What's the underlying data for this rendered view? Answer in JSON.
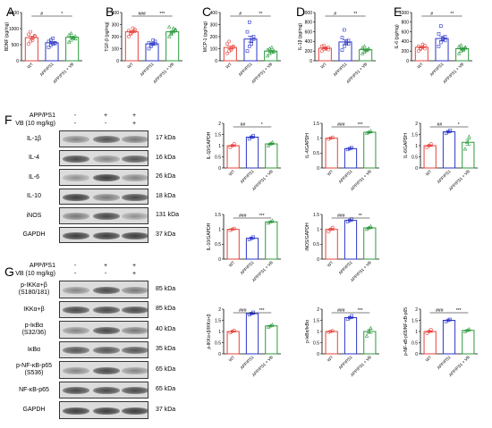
{
  "panels": {
    "A": "A",
    "B": "B",
    "C": "C",
    "D": "D",
    "E": "E",
    "F": "F",
    "G": "G"
  },
  "colors": {
    "wt": "#e8433c",
    "app": "#2b36c8",
    "vb": "#2c9a3d"
  },
  "blot_F": {
    "header_rows": [
      {
        "label": "APP/PS1",
        "marks": [
          "-",
          "+",
          "+"
        ]
      },
      {
        "label": "VB (10 mg/kg)",
        "marks": [
          "-",
          "-",
          "+"
        ]
      }
    ],
    "rows": [
      {
        "name": "IL-1β",
        "kda": "17 kDa",
        "intensity": [
          0.55,
          0.75,
          0.6
        ]
      },
      {
        "name": "IL-4",
        "kda": "16 kDa",
        "intensity": [
          0.8,
          0.55,
          0.75
        ]
      },
      {
        "name": "IL-6",
        "kda": "26 kDa",
        "intensity": [
          0.5,
          0.85,
          0.55
        ]
      },
      {
        "name": "IL-10",
        "kda": "18 kDa",
        "intensity": [
          0.85,
          0.6,
          0.8
        ]
      },
      {
        "name": "iNOS",
        "kda": "131 kDa",
        "intensity": [
          0.6,
          0.8,
          0.5
        ]
      },
      {
        "name": "GAPDH",
        "kda": "37 kDa",
        "intensity": [
          0.85,
          0.85,
          0.85
        ]
      }
    ]
  },
  "blot_G": {
    "header_rows": [
      {
        "label": "APP/PS1",
        "marks": [
          "-",
          "+",
          "+"
        ]
      },
      {
        "label": "VB (10 mg/kg)",
        "marks": [
          "-",
          "-",
          "+"
        ]
      }
    ],
    "rows": [
      {
        "name": "p-IKKα+β\n(S180/181)",
        "kda": "85 kDa",
        "intensity": [
          0.55,
          0.8,
          0.6
        ]
      },
      {
        "name": "IKKα+β",
        "kda": "85 kDa",
        "intensity": [
          0.8,
          0.8,
          0.8
        ]
      },
      {
        "name": "p-IκBα\n(S32/36)",
        "kda": "40 kDa",
        "intensity": [
          0.55,
          0.8,
          0.6
        ]
      },
      {
        "name": "IκBα",
        "kda": "35 kDa",
        "intensity": [
          0.75,
          0.75,
          0.75
        ]
      },
      {
        "name": "p-NF-κB-p65\n(S536)",
        "kda": "65 kDa",
        "intensity": [
          0.55,
          0.8,
          0.55
        ]
      },
      {
        "name": "NF-κB-p65",
        "kda": "65 kDa",
        "intensity": [
          0.8,
          0.8,
          0.8
        ]
      },
      {
        "name": "GAPDH",
        "kda": "37 kDa",
        "intensity": [
          0.85,
          0.85,
          0.85
        ]
      }
    ]
  },
  "chart_data": [
    {
      "id": "A",
      "type": "bar",
      "categories": [
        "WT",
        "APP/PS1",
        "APP/PS1 + VB"
      ],
      "values": [
        720,
        560,
        730
      ],
      "ylabel": "BDNF (pg/mg)",
      "ylim": [
        0,
        1500
      ],
      "ticks": [
        0,
        500,
        1000,
        1500
      ],
      "sig": [
        {
          "a": 0,
          "b": 1,
          "text": "#"
        },
        {
          "a": 1,
          "b": 2,
          "text": "*"
        }
      ],
      "points": [
        [
          520,
          600,
          700,
          760,
          820,
          900,
          640,
          780
        ],
        [
          420,
          480,
          520,
          560,
          600,
          650,
          700,
          540
        ],
        [
          580,
          640,
          700,
          760,
          800,
          850,
          720,
          680
        ]
      ]
    },
    {
      "id": "B",
      "type": "bar",
      "categories": [
        "WT",
        "APP/PS1",
        "APP/PS1 + VB"
      ],
      "values": [
        240,
        140,
        240
      ],
      "ylabel": "TGF-β (pg/mg)",
      "ylim": [
        0,
        400
      ],
      "ticks": [
        0,
        100,
        200,
        300,
        400
      ],
      "sig": [
        {
          "a": 0,
          "b": 1,
          "text": "###"
        },
        {
          "a": 1,
          "b": 2,
          "text": "***"
        }
      ],
      "points": [
        [
          200,
          220,
          240,
          260,
          250,
          230,
          270,
          245
        ],
        [
          100,
          120,
          140,
          160,
          150,
          130,
          170,
          140
        ],
        [
          200,
          220,
          240,
          260,
          280,
          230,
          270,
          250
        ]
      ]
    },
    {
      "id": "C",
      "type": "bar",
      "categories": [
        "WT",
        "APP/PS1",
        "APP/PS1 + VB"
      ],
      "values": [
        110,
        180,
        80
      ],
      "ylabel": "MCP-1 (pg/mg)",
      "ylim": [
        0,
        400
      ],
      "ticks": [
        0,
        100,
        200,
        300,
        400
      ],
      "sig": [
        {
          "a": 0,
          "b": 1,
          "text": "#"
        },
        {
          "a": 1,
          "b": 2,
          "text": "**"
        }
      ],
      "points": [
        [
          60,
          80,
          100,
          120,
          140,
          160,
          90,
          110
        ],
        [
          80,
          120,
          160,
          200,
          240,
          320,
          140,
          180
        ],
        [
          40,
          60,
          70,
          80,
          90,
          100,
          110,
          75
        ]
      ]
    },
    {
      "id": "D",
      "type": "bar",
      "categories": [
        "WT",
        "APP/PS1",
        "APP/PS1 + VB"
      ],
      "values": [
        260,
        390,
        230
      ],
      "ylabel": "IL-1β (pg/mg)",
      "ylim": [
        0,
        1000
      ],
      "ticks": [
        0,
        200,
        400,
        600,
        800,
        1000
      ],
      "sig": [
        {
          "a": 0,
          "b": 1,
          "text": "#"
        },
        {
          "a": 1,
          "b": 2,
          "text": "**"
        }
      ],
      "points": [
        [
          200,
          240,
          260,
          280,
          300,
          320,
          250,
          230
        ],
        [
          220,
          300,
          360,
          420,
          480,
          640,
          400,
          350
        ],
        [
          150,
          180,
          210,
          240,
          270,
          300,
          220,
          250
        ]
      ]
    },
    {
      "id": "E",
      "type": "bar",
      "categories": [
        "WT",
        "APP/PS1",
        "APP/PS1 + VB"
      ],
      "values": [
        280,
        460,
        250
      ],
      "ylabel": "IL-6 (pg/mg)",
      "ylim": [
        0,
        1000
      ],
      "ticks": [
        0,
        200,
        400,
        600,
        800,
        1000
      ],
      "sig": [
        {
          "a": 0,
          "b": 1,
          "text": "#"
        },
        {
          "a": 1,
          "b": 2,
          "text": "**"
        }
      ],
      "points": [
        [
          200,
          240,
          280,
          320,
          300,
          260,
          340,
          250
        ],
        [
          300,
          380,
          440,
          500,
          560,
          720,
          460,
          420
        ],
        [
          150,
          200,
          240,
          280,
          300,
          320,
          220,
          260
        ]
      ]
    },
    {
      "id": "F1",
      "type": "bar",
      "categories": [
        "WT",
        "APP/PS1",
        "APP/PS1 + VB"
      ],
      "values": [
        1.0,
        1.38,
        1.08
      ],
      "ylabel": "IL-1β/GAPDH",
      "ylim": [
        0,
        2.0
      ],
      "ticks": [
        0,
        0.5,
        1.0,
        1.5,
        2.0
      ],
      "sig": [
        {
          "a": 0,
          "b": 1,
          "text": "##"
        },
        {
          "a": 1,
          "b": 2,
          "text": "*"
        }
      ],
      "points": [
        [
          0.92,
          1.0,
          1.08
        ],
        [
          1.3,
          1.38,
          1.45
        ],
        [
          1.0,
          1.08,
          1.15
        ]
      ]
    },
    {
      "id": "F2",
      "type": "bar",
      "categories": [
        "WT",
        "APP/PS1",
        "APP/PS1 + VB"
      ],
      "values": [
        1.0,
        0.65,
        1.2
      ],
      "ylabel": "IL-4/GAPDH",
      "ylim": [
        0,
        1.5
      ],
      "ticks": [
        0,
        0.5,
        1.0,
        1.5
      ],
      "sig": [
        {
          "a": 0,
          "b": 1,
          "text": "###"
        },
        {
          "a": 1,
          "b": 2,
          "text": "***"
        }
      ],
      "points": [
        [
          0.97,
          1.0,
          1.03
        ],
        [
          0.62,
          0.65,
          0.68
        ],
        [
          1.16,
          1.2,
          1.24
        ]
      ]
    },
    {
      "id": "F3",
      "type": "bar",
      "categories": [
        "WT",
        "APP/PS1",
        "APP/PS1 + VB"
      ],
      "values": [
        1.0,
        1.62,
        1.15
      ],
      "ylabel": "IL-6/GAPDH",
      "ylim": [
        0,
        2.0
      ],
      "ticks": [
        0,
        0.5,
        1.0,
        1.5,
        2.0
      ],
      "sig": [
        {
          "a": 0,
          "b": 1,
          "text": "##"
        },
        {
          "a": 1,
          "b": 2,
          "text": "*"
        }
      ],
      "points": [
        [
          0.92,
          1.0,
          1.08
        ],
        [
          1.55,
          1.62,
          1.68
        ],
        [
          0.85,
          1.15,
          1.4
        ]
      ]
    },
    {
      "id": "F4",
      "type": "bar",
      "categories": [
        "WT",
        "APP/PS1",
        "APP/PS1 + VB"
      ],
      "values": [
        1.0,
        0.7,
        1.25
      ],
      "ylabel": "IL-10/GAPDH",
      "ylim": [
        0,
        1.5
      ],
      "ticks": [
        0,
        0.5,
        1.0,
        1.5
      ],
      "sig": [
        {
          "a": 0,
          "b": 1,
          "text": "###"
        },
        {
          "a": 1,
          "b": 2,
          "text": "***"
        }
      ],
      "points": [
        [
          0.97,
          1.0,
          1.03
        ],
        [
          0.66,
          0.7,
          0.74
        ],
        [
          1.21,
          1.25,
          1.29
        ]
      ]
    },
    {
      "id": "F5",
      "type": "bar",
      "categories": [
        "WT",
        "APP/PS1",
        "APP/PS1 + VB"
      ],
      "values": [
        1.0,
        1.3,
        1.05
      ],
      "ylabel": "iNOS/GAPDH",
      "ylim": [
        0,
        1.5
      ],
      "ticks": [
        0,
        0.5,
        1.0,
        1.5
      ],
      "sig": [
        {
          "a": 0,
          "b": 1,
          "text": "###"
        },
        {
          "a": 1,
          "b": 2,
          "text": "**"
        }
      ],
      "points": [
        [
          0.92,
          1.0,
          1.06
        ],
        [
          1.26,
          1.3,
          1.34
        ],
        [
          1.0,
          1.05,
          1.1
        ]
      ]
    },
    {
      "id": "G1",
      "type": "bar",
      "categories": [
        "WT",
        "APP/PS1",
        "APP/PS1 + VB"
      ],
      "values": [
        1.0,
        1.8,
        1.25
      ],
      "ylabel": "p-IKKα+β/IKKα+β",
      "ylim": [
        0,
        2.0
      ],
      "ticks": [
        0,
        0.5,
        1.0,
        1.5,
        2.0
      ],
      "sig": [
        {
          "a": 0,
          "b": 1,
          "text": "###"
        },
        {
          "a": 1,
          "b": 2,
          "text": "***"
        }
      ],
      "points": [
        [
          0.95,
          1.0,
          1.05
        ],
        [
          1.75,
          1.8,
          1.86
        ],
        [
          1.2,
          1.25,
          1.3
        ]
      ]
    },
    {
      "id": "G2",
      "type": "bar",
      "categories": [
        "WT",
        "APP/PS1",
        "APP/PS1 + VB"
      ],
      "values": [
        1.0,
        1.62,
        1.0
      ],
      "ylabel": "p-IκBα/IκBα",
      "ylim": [
        0,
        2.0
      ],
      "ticks": [
        0,
        0.5,
        1.0,
        1.5,
        2.0
      ],
      "sig": [
        {
          "a": 0,
          "b": 1,
          "text": "###"
        },
        {
          "a": 1,
          "b": 2,
          "text": "***"
        }
      ],
      "points": [
        [
          0.97,
          1.0,
          1.03
        ],
        [
          1.55,
          1.62,
          1.7
        ],
        [
          0.8,
          1.0,
          1.15
        ]
      ]
    },
    {
      "id": "G3",
      "type": "bar",
      "categories": [
        "WT",
        "APP/PS1",
        "APP/PS1 + VB"
      ],
      "values": [
        1.0,
        1.5,
        1.05
      ],
      "ylabel": "p-NF-κB-p65/NF-κB-p65",
      "ylim": [
        0,
        2.0
      ],
      "ticks": [
        0,
        0.5,
        1.0,
        1.5,
        2.0
      ],
      "sig": [
        {
          "a": 0,
          "b": 1,
          "text": "###"
        },
        {
          "a": 1,
          "b": 2,
          "text": "***"
        }
      ],
      "points": [
        [
          0.92,
          1.0,
          1.08
        ],
        [
          1.45,
          1.5,
          1.54
        ],
        [
          1.0,
          1.05,
          1.1
        ]
      ]
    }
  ]
}
